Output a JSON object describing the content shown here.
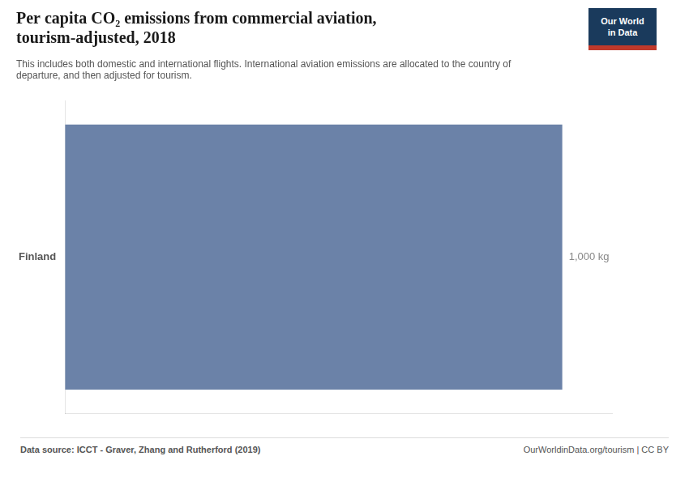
{
  "chart_data": {
    "type": "bar",
    "orientation": "horizontal",
    "title": "Per capita CO₂ emissions from commercial aviation,\ntourism-adjusted, 2018",
    "subtitle": "This includes both domestic and international flights. International aviation emissions are allocated to the country of\ndeparture, and then adjusted for tourism.",
    "annotations": [
      "Data source: ICCT - Graver, Zhang and Rutherford (2019)",
      "OurWorldinData.org/tourism | CC BY",
      "Our World\nin Data"
    ],
    "categories": [
      "Finland"
    ],
    "values": [
      1000
    ],
    "value_labels": [
      "1,000 kg"
    ],
    "data_labels": true,
    "color": "#6b82a8",
    "xlim": [
      0,
      1100
    ],
    "xticks": [],
    "tick_labels": "y",
    "grid": false
  }
}
